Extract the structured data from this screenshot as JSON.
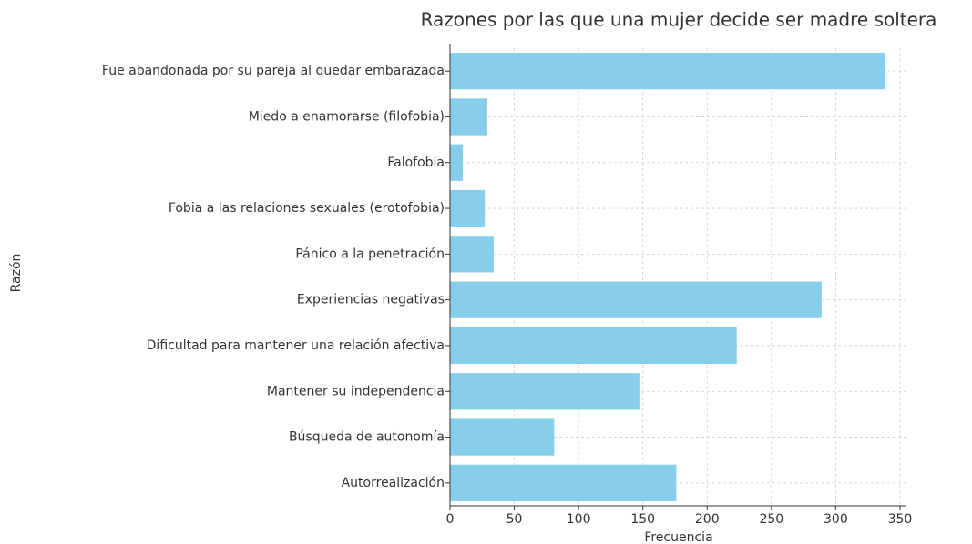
{
  "chart_data": {
    "type": "barh",
    "title": "Razones por las que una mujer decide ser madre soltera",
    "xlabel": "Frecuencia",
    "ylabel": "Razón",
    "categories": [
      "Fue abandonada por su pareja al quedar embarazada",
      "Miedo a enamorarse (filofobia)",
      "Falofobia",
      "Fobia a las relaciones sexuales (erotofobia)",
      "Pánico a la penetración",
      "Experiencias negativas",
      "Dificultad para mantener una relación afectiva",
      "Mantener su independencia",
      "Búsqueda de autonomía",
      "Autorrealización"
    ],
    "values": [
      338,
      29,
      10,
      27,
      34,
      289,
      223,
      148,
      81,
      176
    ],
    "color": "#87ceeb",
    "xlim": [
      0,
      355
    ],
    "xticks": [
      0,
      50,
      100,
      150,
      200,
      250,
      300,
      350
    ],
    "grid": true
  }
}
